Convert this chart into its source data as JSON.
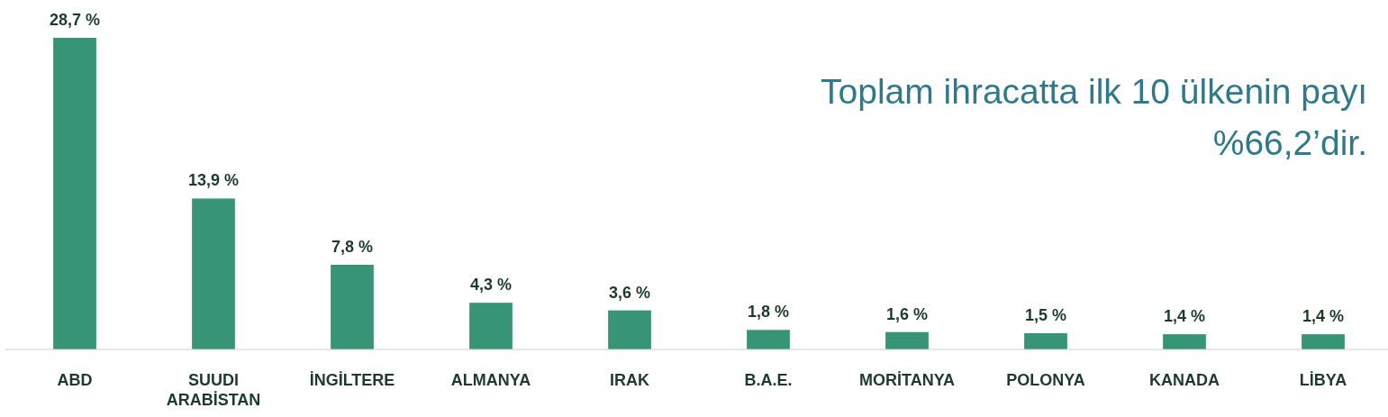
{
  "chart_data": {
    "type": "bar",
    "title": "Toplam ihracatta ilk 10 ülkenin payı %66,2’dir.",
    "categories": [
      "ABD",
      "SUUDI ARABİSTAN",
      "İNGİLTERE",
      "ALMANYA",
      "IRAK",
      "B.A.E.",
      "MORİTANYA",
      "POLONYA",
      "KANADA",
      "LİBYA"
    ],
    "values": [
      28.7,
      13.9,
      7.8,
      4.3,
      3.6,
      1.8,
      1.6,
      1.5,
      1.4,
      1.4
    ],
    "value_labels": [
      "28,7 %",
      "13,9 %",
      "7,8 %",
      "4,3 %",
      "3,6 %",
      "1,8 %",
      "1,6 %",
      "1,5 %",
      "1,4 %",
      "1,4 %"
    ],
    "color": "#379477"
  }
}
